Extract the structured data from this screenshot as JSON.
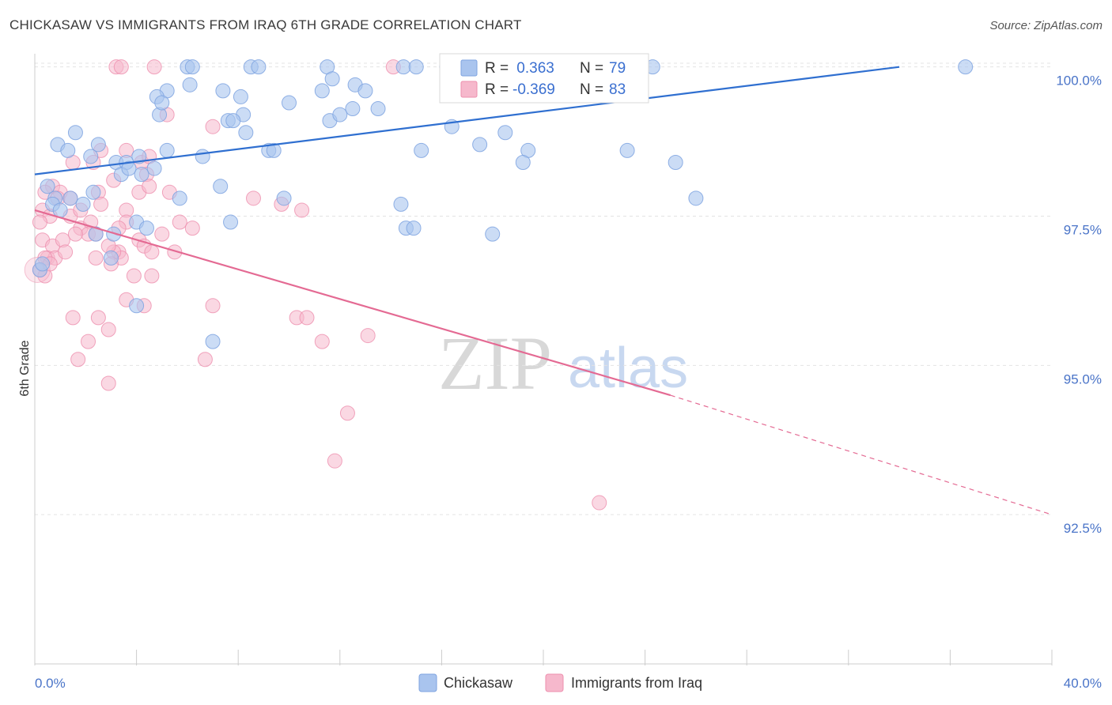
{
  "title": "CHICKASAW VS IMMIGRANTS FROM IRAQ 6TH GRADE CORRELATION CHART",
  "source": "Source: ZipAtlas.com",
  "watermark": {
    "zip": "ZIP",
    "atlas": "atlas"
  },
  "colors": {
    "blue_fill": "#a9c4ee",
    "blue_stroke": "#7ea3e0",
    "blue_line": "#2f6fd0",
    "pink_fill": "#f6b8cc",
    "pink_stroke": "#ee8fae",
    "pink_line": "#e46a93",
    "grid": "#e3e3e3",
    "tick_text": "#4a74c8"
  },
  "legend": {
    "r_label": "R =",
    "n_label": "N =",
    "rows": [
      {
        "r": " 0.363",
        "n": "79"
      },
      {
        "r": "-0.369",
        "n": "83"
      }
    ]
  },
  "chart_data": {
    "type": "scatter",
    "title": "CHICKASAW VS IMMIGRANTS FROM IRAQ 6TH GRADE CORRELATION CHART",
    "xlabel": "",
    "ylabel": "6th Grade",
    "xlim": [
      0,
      40
    ],
    "ylim": [
      90.0,
      100.3
    ],
    "x_tick_labels": [
      "0.0%",
      "40.0%"
    ],
    "y_ticks": [
      100.0,
      97.5,
      95.0,
      92.5
    ],
    "y_tick_labels": [
      "100.0%",
      "97.5%",
      "95.0%",
      "92.5%"
    ],
    "grid": "horizontal dashed",
    "legend_position": "top-center",
    "series": [
      {
        "name": "Chickasaw",
        "r": 0.363,
        "n": 79,
        "trend": {
          "x0": 0.0,
          "y0": 98.2,
          "x1": 34.0,
          "y1": 100.0,
          "dashed_to": null
        },
        "points": [
          [
            6.0,
            100.0
          ],
          [
            6.2,
            100.0
          ],
          [
            8.5,
            100.0
          ],
          [
            8.8,
            100.0
          ],
          [
            11.5,
            100.0
          ],
          [
            14.5,
            100.0
          ],
          [
            15.0,
            100.0
          ],
          [
            16.2,
            100.0
          ],
          [
            24.3,
            100.0
          ],
          [
            36.6,
            100.0
          ],
          [
            6.1,
            99.7
          ],
          [
            7.4,
            99.6
          ],
          [
            5.2,
            99.6
          ],
          [
            11.3,
            99.6
          ],
          [
            4.8,
            99.5
          ],
          [
            8.1,
            99.5
          ],
          [
            10.0,
            99.4
          ],
          [
            8.2,
            99.2
          ],
          [
            12.6,
            99.7
          ],
          [
            11.7,
            99.8
          ],
          [
            12.5,
            99.3
          ],
          [
            13.5,
            99.3
          ],
          [
            4.9,
            99.2
          ],
          [
            7.6,
            99.1
          ],
          [
            7.8,
            99.1
          ],
          [
            11.6,
            99.1
          ],
          [
            12.0,
            99.2
          ],
          [
            1.6,
            98.9
          ],
          [
            2.5,
            98.7
          ],
          [
            0.9,
            98.7
          ],
          [
            1.3,
            98.6
          ],
          [
            5.2,
            98.6
          ],
          [
            9.2,
            98.6
          ],
          [
            15.2,
            98.6
          ],
          [
            19.4,
            98.6
          ],
          [
            8.3,
            98.9
          ],
          [
            23.3,
            98.6
          ],
          [
            2.2,
            98.5
          ],
          [
            4.1,
            98.5
          ],
          [
            6.6,
            98.5
          ],
          [
            18.5,
            98.9
          ],
          [
            25.2,
            98.4
          ],
          [
            19.2,
            98.4
          ],
          [
            3.2,
            98.4
          ],
          [
            3.6,
            98.4
          ],
          [
            4.7,
            98.3
          ],
          [
            4.2,
            98.2
          ],
          [
            3.4,
            98.2
          ],
          [
            0.5,
            98.0
          ],
          [
            1.4,
            97.8
          ],
          [
            0.8,
            97.8
          ],
          [
            2.3,
            97.9
          ],
          [
            7.3,
            98.0
          ],
          [
            5.7,
            97.8
          ],
          [
            9.8,
            97.8
          ],
          [
            14.4,
            97.7
          ],
          [
            26.0,
            97.8
          ],
          [
            0.7,
            97.7
          ],
          [
            1.0,
            97.6
          ],
          [
            1.9,
            97.7
          ],
          [
            4.0,
            97.4
          ],
          [
            4.4,
            97.3
          ],
          [
            7.7,
            97.4
          ],
          [
            2.4,
            97.2
          ],
          [
            14.6,
            97.3
          ],
          [
            18.0,
            97.2
          ],
          [
            3.1,
            97.2
          ],
          [
            14.9,
            97.3
          ],
          [
            17.5,
            98.7
          ],
          [
            3.0,
            96.8
          ],
          [
            4.0,
            96.0
          ],
          [
            7.0,
            95.4
          ],
          [
            0.2,
            96.6
          ],
          [
            0.3,
            96.7
          ],
          [
            9.4,
            98.6
          ],
          [
            3.7,
            98.3
          ],
          [
            16.4,
            99.0
          ],
          [
            13.0,
            99.6
          ],
          [
            5.0,
            99.4
          ]
        ]
      },
      {
        "name": "Immigrants from Iraq",
        "r": -0.369,
        "n": 83,
        "trend": {
          "x0": 0.0,
          "y0": 97.6,
          "x1": 25.0,
          "y1": 94.5,
          "dashed_to": [
            40.0,
            92.5
          ]
        },
        "points": [
          [
            3.2,
            100.0
          ],
          [
            3.4,
            100.0
          ],
          [
            4.7,
            100.0
          ],
          [
            14.1,
            100.0
          ],
          [
            17.1,
            100.0
          ],
          [
            5.2,
            99.2
          ],
          [
            7.0,
            99.0
          ],
          [
            3.6,
            98.6
          ],
          [
            2.6,
            98.6
          ],
          [
            1.5,
            98.4
          ],
          [
            2.3,
            98.4
          ],
          [
            4.2,
            98.4
          ],
          [
            4.4,
            98.2
          ],
          [
            3.1,
            98.1
          ],
          [
            0.7,
            98.0
          ],
          [
            0.4,
            97.9
          ],
          [
            1.0,
            97.9
          ],
          [
            1.4,
            97.8
          ],
          [
            0.9,
            97.8
          ],
          [
            2.5,
            97.9
          ],
          [
            4.1,
            97.9
          ],
          [
            5.3,
            97.9
          ],
          [
            4.5,
            98.0
          ],
          [
            9.7,
            97.7
          ],
          [
            10.5,
            97.6
          ],
          [
            0.3,
            97.6
          ],
          [
            0.6,
            97.5
          ],
          [
            1.4,
            97.5
          ],
          [
            3.6,
            97.6
          ],
          [
            2.6,
            97.7
          ],
          [
            0.2,
            97.4
          ],
          [
            1.8,
            97.3
          ],
          [
            2.2,
            97.4
          ],
          [
            3.6,
            97.4
          ],
          [
            5.7,
            97.4
          ],
          [
            2.1,
            97.2
          ],
          [
            2.4,
            97.2
          ],
          [
            4.1,
            97.1
          ],
          [
            5.0,
            97.2
          ],
          [
            0.3,
            97.1
          ],
          [
            0.7,
            97.0
          ],
          [
            1.1,
            97.1
          ],
          [
            4.3,
            97.0
          ],
          [
            4.6,
            96.9
          ],
          [
            3.3,
            96.9
          ],
          [
            3.4,
            96.8
          ],
          [
            3.1,
            96.9
          ],
          [
            0.5,
            96.8
          ],
          [
            0.8,
            96.8
          ],
          [
            2.4,
            96.8
          ],
          [
            3.0,
            96.7
          ],
          [
            4.6,
            96.5
          ],
          [
            3.9,
            96.5
          ],
          [
            0.2,
            96.6
          ],
          [
            0.4,
            96.5
          ],
          [
            3.6,
            96.1
          ],
          [
            4.3,
            96.0
          ],
          [
            7.0,
            96.0
          ],
          [
            1.5,
            95.8
          ],
          [
            2.5,
            95.8
          ],
          [
            10.3,
            95.8
          ],
          [
            10.7,
            95.8
          ],
          [
            2.9,
            95.6
          ],
          [
            2.1,
            95.4
          ],
          [
            11.3,
            95.4
          ],
          [
            13.1,
            95.5
          ],
          [
            1.7,
            95.1
          ],
          [
            6.7,
            95.1
          ],
          [
            2.9,
            94.7
          ],
          [
            12.3,
            94.2
          ],
          [
            11.8,
            93.4
          ],
          [
            22.2,
            92.7
          ],
          [
            4.5,
            98.5
          ],
          [
            1.8,
            97.6
          ],
          [
            6.2,
            97.3
          ],
          [
            8.6,
            97.8
          ],
          [
            0.4,
            96.8
          ],
          [
            1.2,
            96.9
          ],
          [
            3.3,
            97.3
          ],
          [
            2.9,
            97.0
          ],
          [
            1.6,
            97.2
          ],
          [
            5.5,
            96.9
          ],
          [
            0.6,
            96.7
          ]
        ]
      }
    ]
  },
  "bottom_legend": [
    "Chickasaw",
    "Immigrants from Iraq"
  ]
}
